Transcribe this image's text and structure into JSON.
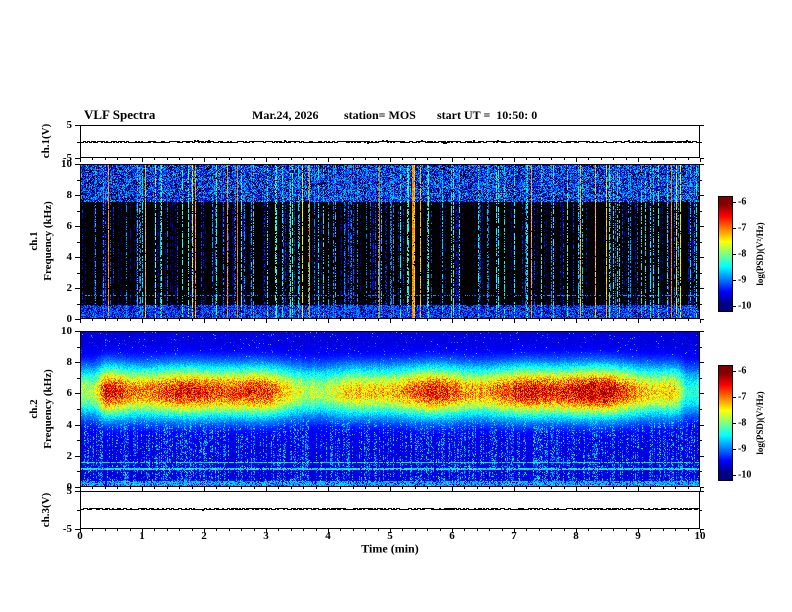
{
  "chart_data": {
    "type": "heatmap",
    "title": "VLF Spectra",
    "annotations": {
      "date": "Mar.24, 2026",
      "station": "station= MOS",
      "start_ut": "start UT =  10:50: 0"
    },
    "x_axis": {
      "label": "Time (min)",
      "range": [
        0,
        10
      ],
      "major_ticks": [
        0,
        1,
        2,
        3,
        4,
        5,
        6,
        7,
        8,
        9,
        10
      ],
      "minor_step": 0.2
    },
    "panels": [
      {
        "id": "ch1v",
        "label": "ch.1(V)",
        "type": "line",
        "y_range": [
          -5,
          5
        ],
        "y_tick_labels": [
          "5",
          "-5"
        ],
        "description": "ch.1 voltage time series, nearly flat trace close to 0 V across the full 0-10 min interval",
        "signal": {
          "mean": 0,
          "noise": 0.16,
          "spike_prob": 0.05,
          "spike_amp": 0.5
        }
      },
      {
        "id": "ch1s",
        "label_lines": [
          "ch.1",
          "Frequency (kHz)"
        ],
        "type": "heatmap",
        "x_range": [
          0,
          10
        ],
        "y_range": [
          0,
          10
        ],
        "y_major_ticks": [
          0,
          2,
          4,
          6,
          8,
          10
        ],
        "y_minor_ticks": [
          1,
          3,
          5,
          7,
          9
        ],
        "description": "Impulsive broadband sferic streaks spanning 0-10 kHz as vertical blue/cyan lines on a black background; dense blue-cyan speckle above ~7.6 kHz and below ~0.9 kHz; a few strong green-yellow streaks; faint dashed horizontal line near 1.5 kHz; PSD mostly -10 to -8 log(V²/Hz)",
        "model": {
          "kind": "impulsive",
          "vmin": -10,
          "vmax": -6,
          "top_band": {
            "f_min": 7.6,
            "f_max": 10,
            "density": 0.75,
            "v_mean": -9.35,
            "v_spread": 1.1
          },
          "bottom_band": {
            "f_min": 0,
            "f_max": 0.9,
            "density": 0.8,
            "v_mean": -9.25,
            "v_spread": 0.8
          },
          "hline": {
            "f": 1.5,
            "halfwidth": 0.05,
            "density": 0.4,
            "v": -8.95
          },
          "streaks": {
            "column_prob": 0.4,
            "strong_prob": 0.02,
            "v_base": -9.8,
            "v_span": 2.9
          }
        }
      },
      {
        "id": "ch2s",
        "label_lines": [
          "ch.2",
          "Frequency (kHz)"
        ],
        "type": "heatmap",
        "x_range": [
          0,
          10
        ],
        "y_range": [
          0,
          10
        ],
        "y_major_ticks": [
          0,
          2,
          4,
          6,
          8,
          10
        ],
        "y_minor_ticks": [
          1,
          3,
          5,
          7,
          9
        ],
        "description": "Continuous hiss/emission band ~4-8 kHz centered near 6.2 kHz with yellow-orange-red core (PSD up to ~-6.3) and green-cyan edges, amplitude pulsing in time; dark-blue speckled background; vertical blue streaks below ~4.4 kHz; faint horizontal interference lines near 1.15 and 1.55 kHz",
        "model": {
          "kind": "band",
          "vmin": -10,
          "vmax": -6,
          "bg_v": -9.7,
          "bg_noise": 0.5,
          "speckle_prob": 0.035,
          "speckle_boost": 1.1,
          "band": {
            "f_center": 6.15,
            "f_sigma": 1.15,
            "amp_base": 2.75,
            "amp_var": 0.85
          },
          "sub_streaks": {
            "column_prob": 0.5,
            "f_max": 4.4,
            "v": -8.9,
            "v_spread": 0.8,
            "pixel_prob": 0.5
          },
          "hlines": [
            {
              "f": 1.15,
              "halfwidth": 0.05,
              "v": -8.6,
              "density": 0.85
            },
            {
              "f": 1.55,
              "halfwidth": 0.05,
              "v": -8.6,
              "density": 0.85
            }
          ],
          "bottom_band": {
            "f_max": 0.35,
            "density": 0.7,
            "v": -9.05
          }
        }
      },
      {
        "id": "ch3v",
        "label": "ch.3(V)",
        "type": "line",
        "y_range": [
          -5,
          5
        ],
        "y_tick_labels": [
          "5",
          "-5"
        ],
        "description": "ch.3 voltage time series, nearly flat trace slightly above 0 V (~+0.4 V) across the full 0-10 min interval",
        "signal": {
          "mean": 0.4,
          "noise": 0.1,
          "spike_prob": 0.02,
          "spike_amp": 0.3
        }
      }
    ],
    "colorbar": {
      "label": "log(PSD)(V²/Hz)",
      "ticks": [
        "-6",
        "-7",
        "-8",
        "-9",
        "-10"
      ],
      "tick_values": [
        -6,
        -7,
        -8,
        -9,
        -10
      ],
      "bar_range": [
        -10.25,
        -5.75
      ],
      "value_range": [
        -10,
        -6
      ],
      "colormap": "jet"
    }
  }
}
